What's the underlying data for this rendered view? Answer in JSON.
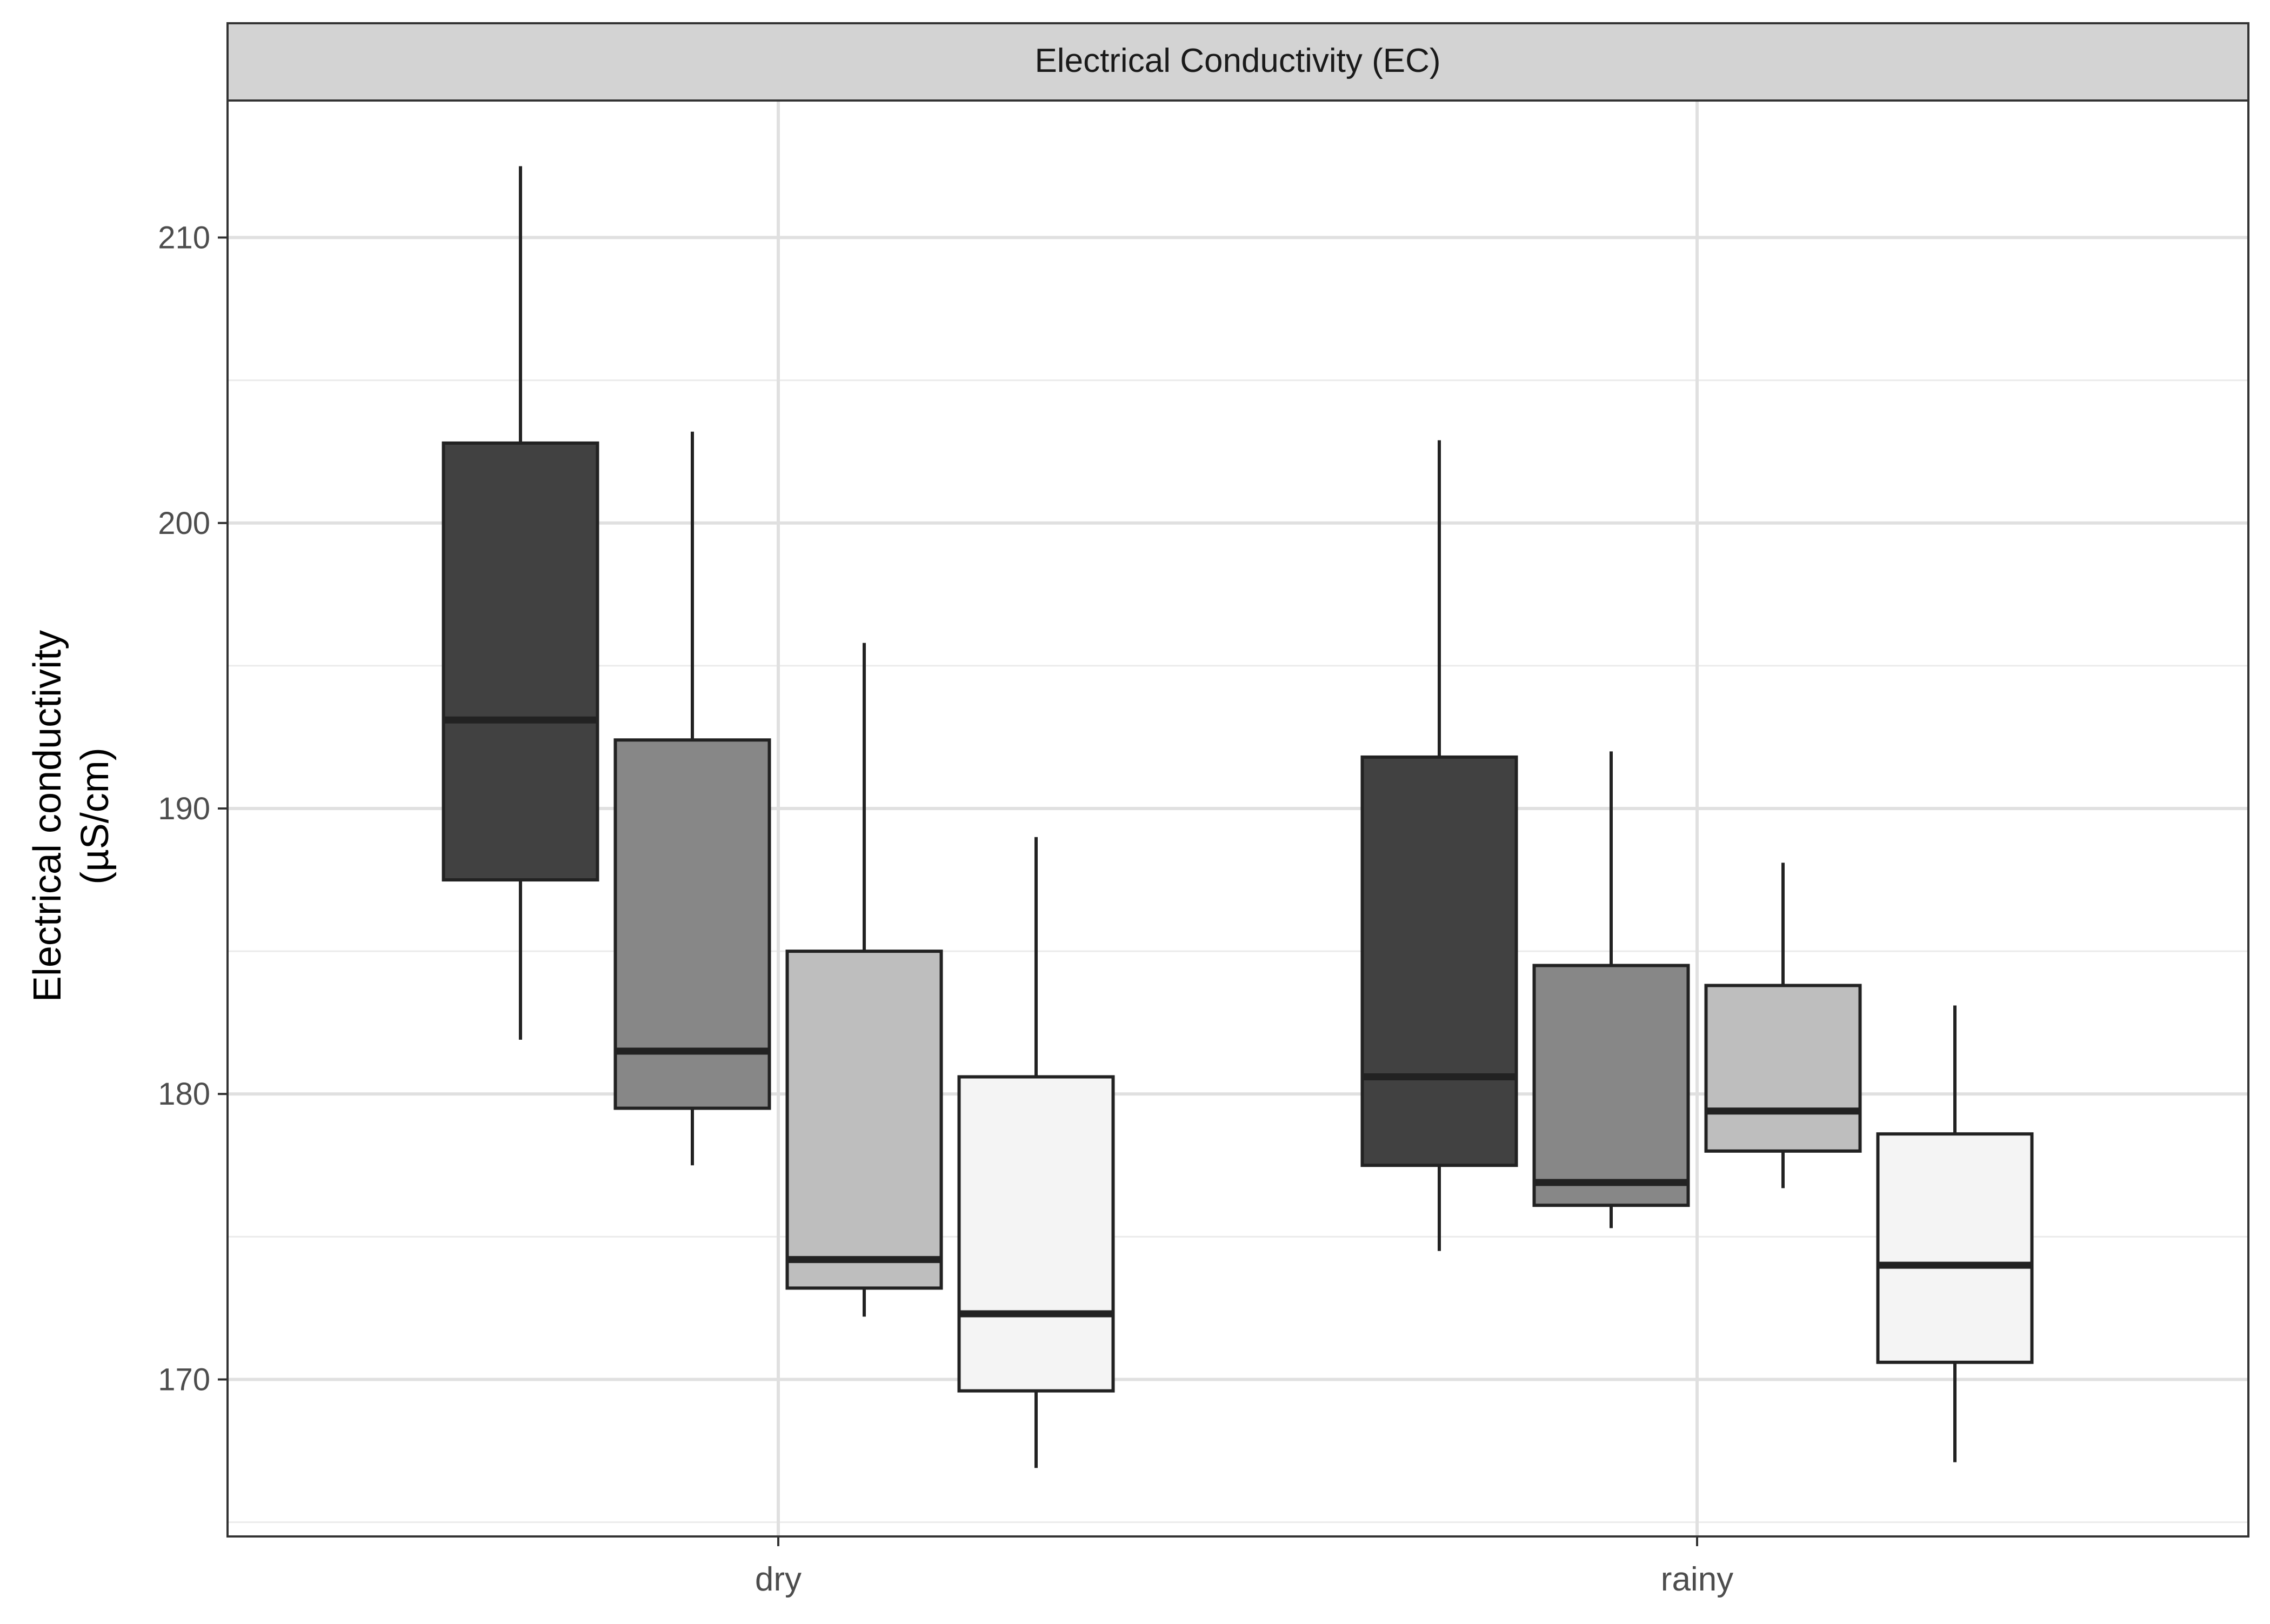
{
  "chart_data": {
    "type": "boxplot",
    "facet_title": "Electrical Conductivity (EC)",
    "ylabel_line1": "Electrical conductivity",
    "ylabel_line2": "(µS/cm)",
    "xlabel": "",
    "ylim": [
      164.5,
      214.8
    ],
    "y_major_ticks": [
      170,
      180,
      190,
      200,
      210
    ],
    "y_minor_ticks": [
      165,
      175,
      185,
      195,
      205
    ],
    "categories": [
      "dry",
      "rainy"
    ],
    "legend": "none",
    "grid": true,
    "fills": [
      "#414141",
      "#878787",
      "#bebebe",
      "#f4f4f4"
    ],
    "boxes": [
      {
        "category": "dry",
        "group": 1,
        "low": 181.9,
        "q1": 187.5,
        "median": 193.1,
        "q3": 202.8,
        "high": 212.5
      },
      {
        "category": "dry",
        "group": 2,
        "low": 177.5,
        "q1": 179.5,
        "median": 181.5,
        "q3": 192.4,
        "high": 203.2
      },
      {
        "category": "dry",
        "group": 3,
        "low": 172.2,
        "q1": 173.2,
        "median": 174.2,
        "q3": 185.0,
        "high": 195.8
      },
      {
        "category": "dry",
        "group": 4,
        "low": 166.9,
        "q1": 169.6,
        "median": 172.3,
        "q3": 180.6,
        "high": 189.0
      },
      {
        "category": "rainy",
        "group": 1,
        "low": 174.5,
        "q1": 177.5,
        "median": 180.6,
        "q3": 191.8,
        "high": 202.9
      },
      {
        "category": "rainy",
        "group": 2,
        "low": 175.3,
        "q1": 176.1,
        "median": 176.9,
        "q3": 184.5,
        "high": 192.0
      },
      {
        "category": "rainy",
        "group": 3,
        "low": 176.7,
        "q1": 178.0,
        "median": 179.4,
        "q3": 183.8,
        "high": 188.1
      },
      {
        "category": "rainy",
        "group": 4,
        "low": 167.1,
        "q1": 170.6,
        "median": 174.0,
        "q3": 178.6,
        "high": 183.1
      }
    ]
  }
}
